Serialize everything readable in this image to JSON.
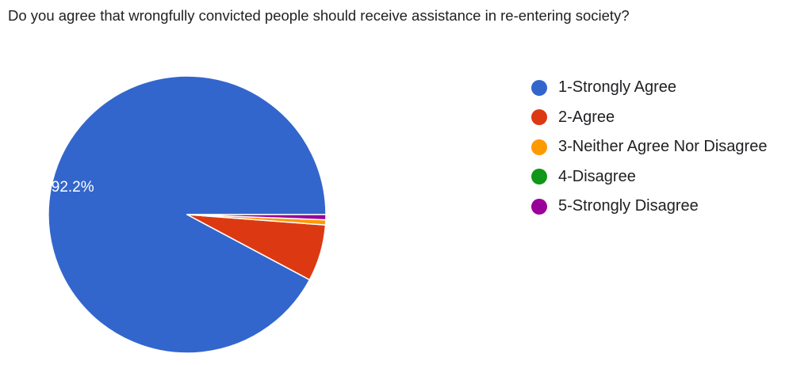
{
  "chart_data": {
    "type": "pie",
    "title": "Do you agree that wrongfully convicted people should receive assistance in re-entering society?",
    "categories": [
      "1-Strongly Agree",
      "2-Agree",
      "3-Neither Agree Nor Disagree",
      "4-Disagree",
      "5-Strongly Disagree"
    ],
    "values": [
      92.2,
      6.6,
      0.6,
      0.0,
      0.6
    ],
    "colors": [
      "#3366cc",
      "#dc3912",
      "#ff9900",
      "#109618",
      "#990099"
    ],
    "slice_labels": [
      "92.2%",
      "",
      "",
      "",
      ""
    ],
    "start": "3 o'clock",
    "direction": "counterclockwise",
    "legend_position": "right"
  }
}
